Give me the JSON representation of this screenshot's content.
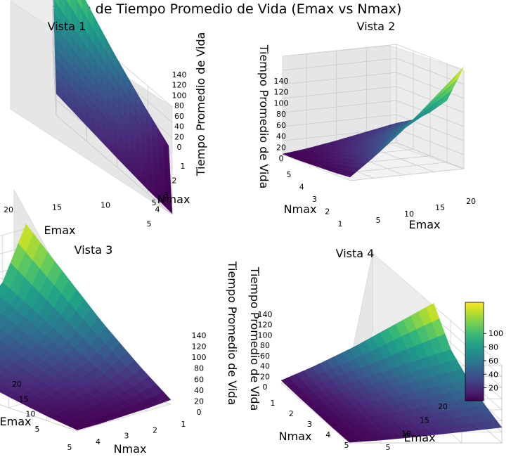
{
  "figure_title": "Superficie de Tiempo Promedio de Vida (Emax vs Nmax)",
  "colorbar": {
    "ticks": [
      "20",
      "40",
      "60",
      "80",
      "100"
    ],
    "colormap": "viridis"
  },
  "chart_data": [
    {
      "type": "surface3d",
      "title": "Vista 1",
      "xlabel": "Emax",
      "ylabel": "Nmax",
      "zlabel": "Tiempo Promedio de Vida",
      "x_ticks": [
        "5",
        "10",
        "15",
        "20"
      ],
      "y_ticks": [
        "1",
        "2",
        "3",
        "4",
        "5"
      ],
      "z_ticks": [
        "0",
        "20",
        "40",
        "60",
        "80",
        "100",
        "120",
        "140"
      ],
      "zlim": [
        0,
        140
      ]
    },
    {
      "type": "surface3d",
      "title": "Vista 2",
      "xlabel": "Emax",
      "ylabel": "Nmax",
      "zlabel": "Tiempo Promedio de Vida",
      "x_ticks": [
        "5",
        "10",
        "15",
        "20"
      ],
      "y_ticks": [
        "1",
        "2",
        "3",
        "4",
        "5"
      ],
      "z_ticks": [
        "0",
        "20",
        "40",
        "60",
        "80",
        "100",
        "120",
        "140"
      ],
      "zlim": [
        0,
        140
      ]
    },
    {
      "type": "surface3d",
      "title": "Vista 3",
      "xlabel": "Emax",
      "ylabel": "Nmax",
      "zlabel": "Tiempo Promedio de Vida",
      "x_ticks": [
        "5",
        "10",
        "15",
        "20"
      ],
      "y_ticks": [
        "1",
        "2",
        "3",
        "4",
        "5"
      ],
      "z_ticks": [
        "0",
        "20",
        "40",
        "60",
        "80",
        "100",
        "120",
        "140"
      ],
      "zlim": [
        0,
        140
      ]
    },
    {
      "type": "surface3d",
      "title": "Vista 4",
      "xlabel": "Emax",
      "ylabel": "Nmax",
      "zlabel": "Tiempo Promedio de Vida",
      "x_ticks": [
        "5",
        "10",
        "15",
        "20"
      ],
      "y_ticks": [
        "1",
        "2",
        "3",
        "4",
        "5"
      ],
      "z_ticks": [
        "0",
        "20",
        "40",
        "60",
        "80",
        "100",
        "120",
        "140"
      ],
      "zlim": [
        0,
        140
      ]
    }
  ],
  "surface_grid": {
    "emax": [
      1,
      5,
      10,
      15,
      20
    ],
    "nmax": [
      1,
      2,
      3,
      4,
      5
    ],
    "z_by_nmax": [
      [
        5,
        30,
        65,
        105,
        145
      ],
      [
        3,
        18,
        40,
        65,
        88
      ],
      [
        2,
        12,
        28,
        45,
        62
      ],
      [
        1,
        8,
        18,
        30,
        42
      ],
      [
        1,
        5,
        12,
        20,
        28
      ]
    ]
  }
}
